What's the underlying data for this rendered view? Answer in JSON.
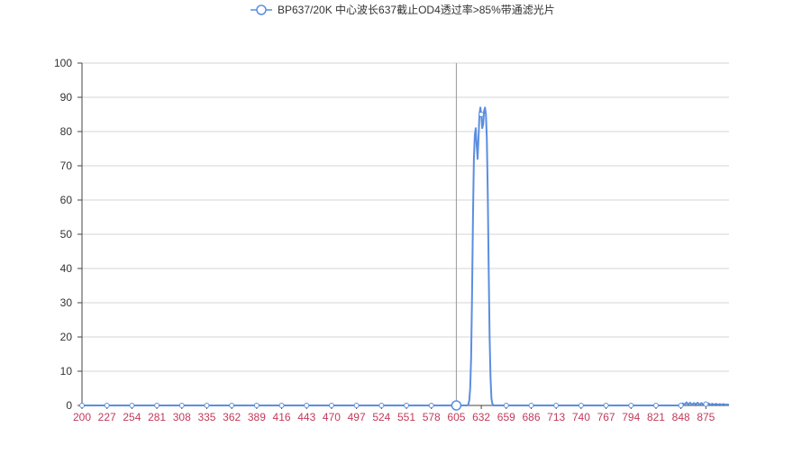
{
  "chart_data": {
    "type": "line",
    "title": "",
    "xlabel": "",
    "ylabel": "",
    "legend": {
      "position": "top-center",
      "entries": [
        "BP637/20K 中心波长637截止OD4透过率>85%带通滤光片"
      ]
    },
    "x_tick_labels": [
      "200",
      "227",
      "254",
      "281",
      "308",
      "335",
      "362",
      "389",
      "416",
      "443",
      "470",
      "497",
      "524",
      "551",
      "578",
      "605",
      "632",
      "659",
      "686",
      "713",
      "740",
      "767",
      "794",
      "821",
      "848",
      "875"
    ],
    "y_tick_labels": [
      "0",
      "10",
      "20",
      "30",
      "40",
      "50",
      "60",
      "70",
      "80",
      "90",
      "100"
    ],
    "xlim": [
      200,
      900
    ],
    "ylim": [
      0,
      100
    ],
    "grid": {
      "horizontal": true,
      "vertical": false
    },
    "marker_line_x": 605,
    "series": [
      {
        "name": "BP637/20K 中心波长637截止OD4透过率>85%带通滤光片",
        "color": "#5b8ee0",
        "points": [
          [
            200,
            0
          ],
          [
            605,
            0
          ],
          [
            617,
            0
          ],
          [
            618,
            0.3
          ],
          [
            619,
            1.5
          ],
          [
            620,
            5
          ],
          [
            621,
            14
          ],
          [
            622,
            32
          ],
          [
            623,
            55
          ],
          [
            624,
            72
          ],
          [
            625,
            79
          ],
          [
            626,
            81
          ],
          [
            627,
            76
          ],
          [
            628,
            72
          ],
          [
            629,
            78
          ],
          [
            630,
            85
          ],
          [
            631,
            87
          ],
          [
            632,
            85
          ],
          [
            633,
            81
          ],
          [
            634,
            82
          ],
          [
            635,
            86
          ],
          [
            636,
            87
          ],
          [
            637,
            85
          ],
          [
            638,
            78
          ],
          [
            639,
            62
          ],
          [
            640,
            40
          ],
          [
            641,
            20
          ],
          [
            642,
            8
          ],
          [
            643,
            2
          ],
          [
            644,
            0.5
          ],
          [
            645,
            0
          ],
          [
            848,
            0
          ],
          [
            850,
            0.6
          ],
          [
            852,
            0.2
          ],
          [
            854,
            0.9
          ],
          [
            856,
            0.3
          ],
          [
            858,
            0.8
          ],
          [
            860,
            0.2
          ],
          [
            862,
            0.7
          ],
          [
            864,
            0.3
          ],
          [
            866,
            0.8
          ],
          [
            868,
            0.2
          ],
          [
            870,
            0.7
          ],
          [
            872,
            0.3
          ],
          [
            874,
            0.6
          ],
          [
            876,
            0.2
          ],
          [
            878,
            0.6
          ],
          [
            880,
            0.2
          ],
          [
            882,
            0.5
          ],
          [
            884,
            0.2
          ],
          [
            886,
            0.5
          ],
          [
            888,
            0.2
          ],
          [
            890,
            0.4
          ],
          [
            892,
            0.2
          ],
          [
            894,
            0.4
          ],
          [
            896,
            0.2
          ],
          [
            898,
            0.3
          ],
          [
            900,
            0.2
          ]
        ],
        "hollow_markers_x": [
          200,
          227,
          254,
          281,
          308,
          335,
          362,
          389,
          416,
          443,
          470,
          497,
          524,
          551,
          578,
          605,
          632,
          659,
          686,
          713,
          740,
          767,
          794,
          821,
          848,
          875
        ],
        "highlighted_marker_x": 605
      }
    ]
  },
  "colors": {
    "series": "#5b8ee0",
    "x_tick_label": "#c23a5a",
    "y_tick_label": "#333333",
    "grid": "#d4d4d4",
    "axis": "#444444"
  }
}
